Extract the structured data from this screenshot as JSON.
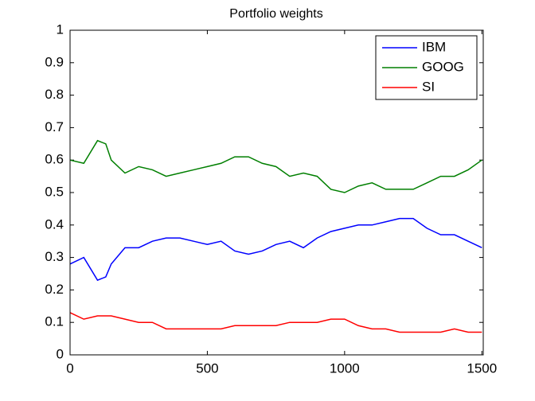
{
  "chart_data": {
    "type": "line",
    "title": "Portfolio weights",
    "x": [
      0,
      50,
      100,
      130,
      150,
      200,
      250,
      300,
      350,
      400,
      450,
      500,
      550,
      600,
      650,
      700,
      750,
      800,
      850,
      900,
      950,
      1000,
      1050,
      1100,
      1150,
      1200,
      1250,
      1300,
      1350,
      1400,
      1450,
      1500
    ],
    "series": [
      {
        "name": "IBM",
        "color": "#0000ff",
        "values": [
          0.28,
          0.3,
          0.23,
          0.24,
          0.28,
          0.33,
          0.33,
          0.35,
          0.36,
          0.36,
          0.35,
          0.34,
          0.35,
          0.32,
          0.31,
          0.32,
          0.34,
          0.35,
          0.33,
          0.36,
          0.38,
          0.39,
          0.4,
          0.4,
          0.41,
          0.42,
          0.42,
          0.39,
          0.37,
          0.37,
          0.35,
          0.33
        ]
      },
      {
        "name": "GOOG",
        "color": "#007f00",
        "values": [
          0.6,
          0.59,
          0.66,
          0.65,
          0.6,
          0.56,
          0.58,
          0.57,
          0.55,
          0.56,
          0.57,
          0.58,
          0.59,
          0.61,
          0.61,
          0.59,
          0.58,
          0.55,
          0.56,
          0.55,
          0.51,
          0.5,
          0.52,
          0.53,
          0.51,
          0.51,
          0.51,
          0.53,
          0.55,
          0.55,
          0.57,
          0.6
        ]
      },
      {
        "name": "SI",
        "color": "#ff0000",
        "values": [
          0.13,
          0.11,
          0.12,
          0.12,
          0.12,
          0.11,
          0.1,
          0.1,
          0.08,
          0.08,
          0.08,
          0.08,
          0.08,
          0.09,
          0.09,
          0.09,
          0.09,
          0.1,
          0.1,
          0.1,
          0.11,
          0.11,
          0.09,
          0.08,
          0.08,
          0.07,
          0.07,
          0.07,
          0.07,
          0.08,
          0.07,
          0.07
        ]
      }
    ],
    "xlim": [
      0,
      1505
    ],
    "xticks": [
      0,
      500,
      1000,
      1500
    ],
    "ylim": [
      0,
      1
    ],
    "yticks": [
      0,
      0.1,
      0.2,
      0.3,
      0.4,
      0.5,
      0.6,
      0.7,
      0.8,
      0.9,
      1
    ],
    "legend": "upper right",
    "grid": false
  }
}
